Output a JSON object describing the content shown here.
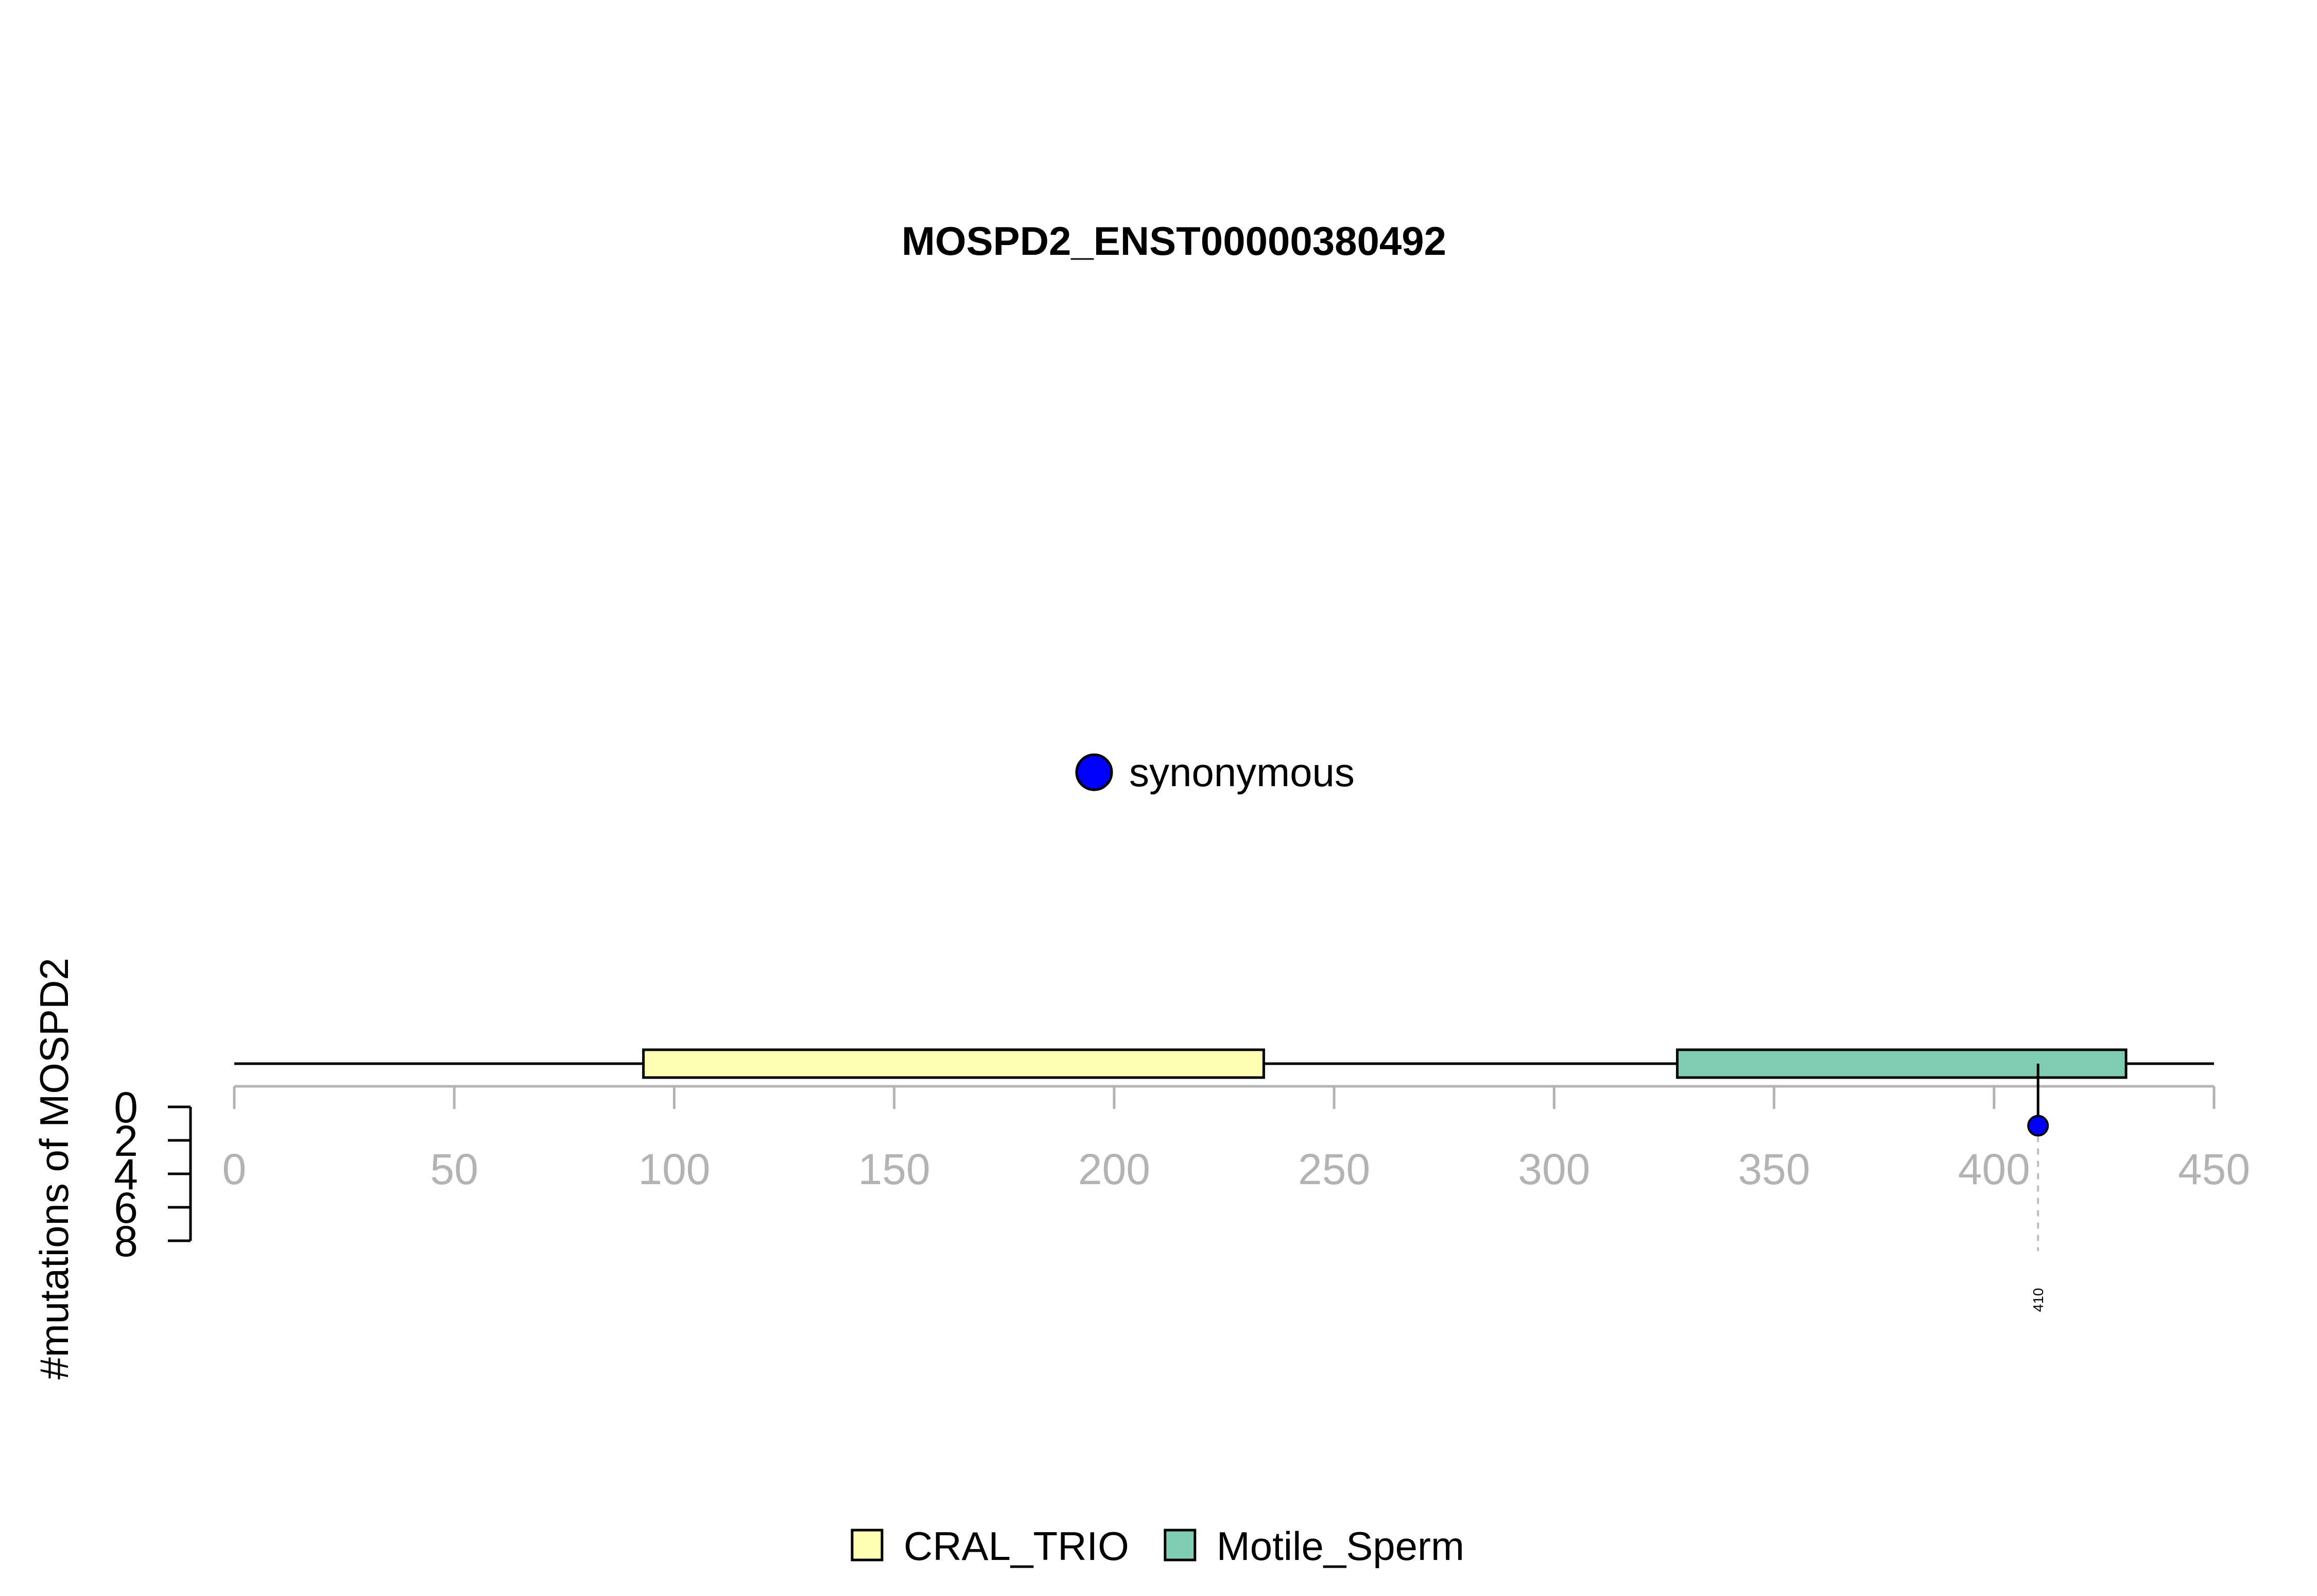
{
  "chart_data": {
    "type": "lollipop",
    "title": "MOSPD2_ENST00000380492",
    "ylabel": "#mutations of MOSPD2",
    "xlim": [
      0,
      450
    ],
    "x_ticks": [
      0,
      50,
      100,
      150,
      200,
      250,
      300,
      350,
      400,
      450
    ],
    "ylim": [
      0,
      8
    ],
    "y_ticks": [
      0,
      2,
      4,
      6,
      8
    ],
    "protein_length": 450,
    "domains": [
      {
        "name": "CRAL_TRIO",
        "start": 93,
        "end": 234,
        "color": "#ffffb3"
      },
      {
        "name": "Motile_Sperm",
        "start": 328,
        "end": 430,
        "color": "#80cdb6"
      }
    ],
    "mutations": [
      {
        "position": 410,
        "count": 1,
        "type": "synonymous",
        "label": "410"
      }
    ],
    "mutation_legend": [
      {
        "name": "synonymous",
        "color": "#0000ff"
      }
    ],
    "domain_legend": [
      {
        "name": "CRAL_TRIO",
        "color": "#ffffb3"
      },
      {
        "name": "Motile_Sperm",
        "color": "#80cdb6"
      }
    ],
    "axis_color": "#b3b3b3"
  }
}
